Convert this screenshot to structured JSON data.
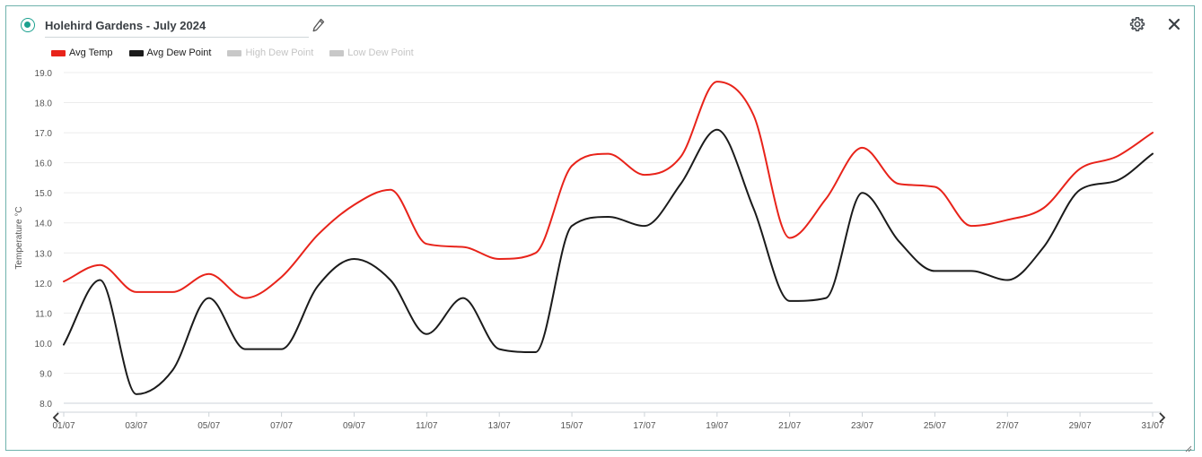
{
  "header": {
    "title": "Holehird Gardens - July 2024",
    "status_color": "#1aa08e",
    "icons": [
      "status-dot-icon",
      "pencil-icon",
      "gear-icon",
      "close-icon"
    ]
  },
  "legend": [
    {
      "label": "Avg Temp",
      "color": "#e8231a",
      "active": true
    },
    {
      "label": "Avg Dew Point",
      "color": "#1b1b1b",
      "active": true
    },
    {
      "label": "High Dew Point",
      "color": "#c8c8c8",
      "active": false
    },
    {
      "label": "Low Dew Point",
      "color": "#c8c8c8",
      "active": false
    }
  ],
  "chart_data": {
    "type": "line",
    "title": "",
    "xlabel": "",
    "ylabel": "Temperature °C",
    "x": [
      "01/07",
      "02/07",
      "03/07",
      "04/07",
      "05/07",
      "06/07",
      "07/07",
      "08/07",
      "09/07",
      "10/07",
      "11/07",
      "12/07",
      "13/07",
      "14/07",
      "15/07",
      "16/07",
      "17/07",
      "18/07",
      "19/07",
      "20/07",
      "21/07",
      "22/07",
      "23/07",
      "24/07",
      "25/07",
      "26/07",
      "27/07",
      "28/07",
      "29/07",
      "30/07",
      "31/07"
    ],
    "x_tick_labels": [
      "01/07",
      "03/07",
      "05/07",
      "07/07",
      "09/07",
      "11/07",
      "13/07",
      "15/07",
      "17/07",
      "19/07",
      "21/07",
      "23/07",
      "25/07",
      "27/07",
      "29/07",
      "31/07"
    ],
    "ylim": [
      8.0,
      19.0
    ],
    "y_ticks": [
      "8.0",
      "9.0",
      "10.0",
      "11.0",
      "12.0",
      "13.0",
      "14.0",
      "15.0",
      "16.0",
      "17.0",
      "18.0",
      "19.0"
    ],
    "grid": true,
    "legend_position": "top-left",
    "series": [
      {
        "name": "Avg Temp",
        "color": "#e8231a",
        "values": [
          12.05,
          12.6,
          11.7,
          11.7,
          12.3,
          11.5,
          12.2,
          13.6,
          14.6,
          15.1,
          13.3,
          13.2,
          12.8,
          13.0,
          15.9,
          16.3,
          15.6,
          16.2,
          18.7,
          17.6,
          13.5,
          14.8,
          16.5,
          15.3,
          15.2,
          13.9,
          14.1,
          14.5,
          15.8,
          16.2,
          17.0
        ]
      },
      {
        "name": "Avg Dew Point",
        "color": "#1b1b1b",
        "values": [
          9.95,
          12.1,
          8.3,
          9.1,
          11.5,
          9.8,
          9.8,
          11.9,
          12.8,
          12.1,
          10.3,
          11.5,
          9.8,
          9.7,
          13.9,
          14.2,
          13.9,
          15.3,
          17.1,
          14.5,
          11.4,
          11.5,
          15.0,
          13.4,
          12.4,
          12.4,
          12.1,
          13.2,
          15.1,
          15.4,
          16.3
        ]
      }
    ]
  }
}
